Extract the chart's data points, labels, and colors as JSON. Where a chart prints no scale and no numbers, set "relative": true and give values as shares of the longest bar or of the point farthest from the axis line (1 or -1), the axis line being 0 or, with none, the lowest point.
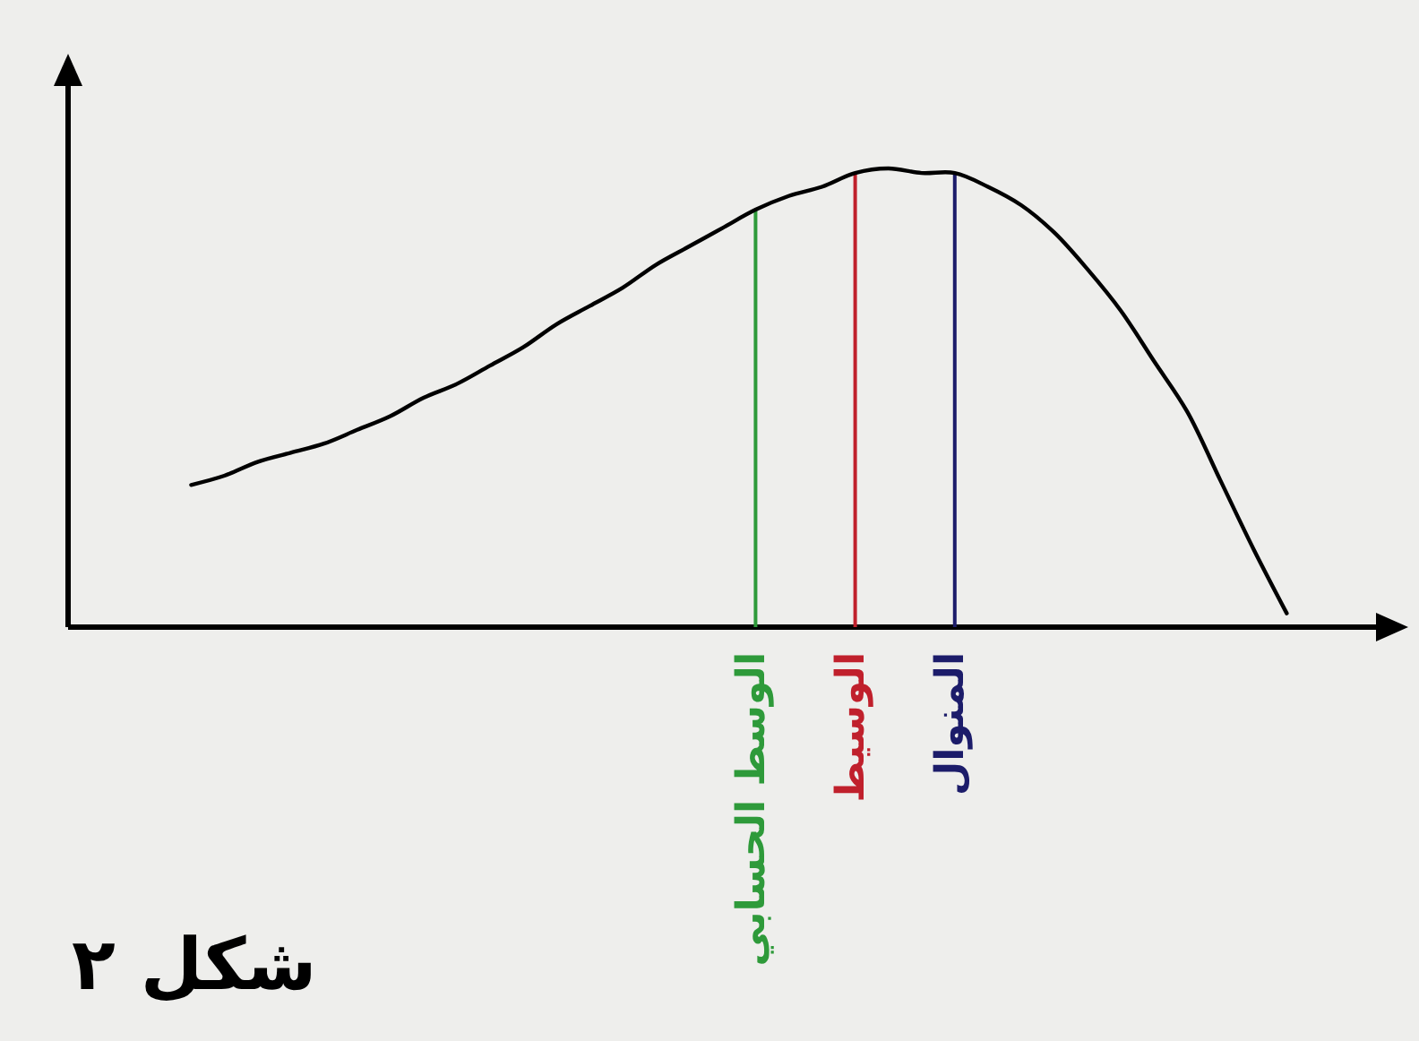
{
  "chart_data": {
    "type": "line",
    "title": "شكل ٢",
    "relative": true,
    "categories": [
      null,
      null,
      null,
      null,
      null,
      null,
      null,
      null,
      null,
      null,
      null,
      null,
      null,
      null,
      null,
      null,
      null,
      "الوسط الحسابي",
      null,
      null,
      "الوسيط",
      null,
      null,
      "المنوال",
      null,
      null,
      null,
      null,
      null,
      null,
      null,
      null,
      null,
      null
    ],
    "series": [
      {
        "color": "#000000",
        "values": [
          0.31,
          0.33,
          0.36,
          0.38,
          0.4,
          0.43,
          0.46,
          0.5,
          0.53,
          0.57,
          0.61,
          0.66,
          0.7,
          0.74,
          0.79,
          0.83,
          0.87,
          0.91,
          0.94,
          0.96,
          0.99,
          1,
          0.99,
          0.99,
          0.96,
          0.92,
          0.86,
          0.78,
          0.69,
          0.58,
          0.47,
          0.32,
          0.17,
          0.03
        ]
      }
    ],
    "ref_lines": [
      {
        "axis": "x",
        "value": "الوسط الحسابي",
        "color": "#2e9a3a"
      },
      {
        "axis": "x",
        "value": "الوسيط",
        "color": "#c0202c"
      },
      {
        "axis": "x",
        "value": "المنوال",
        "color": "#1c1c6a"
      }
    ]
  }
}
